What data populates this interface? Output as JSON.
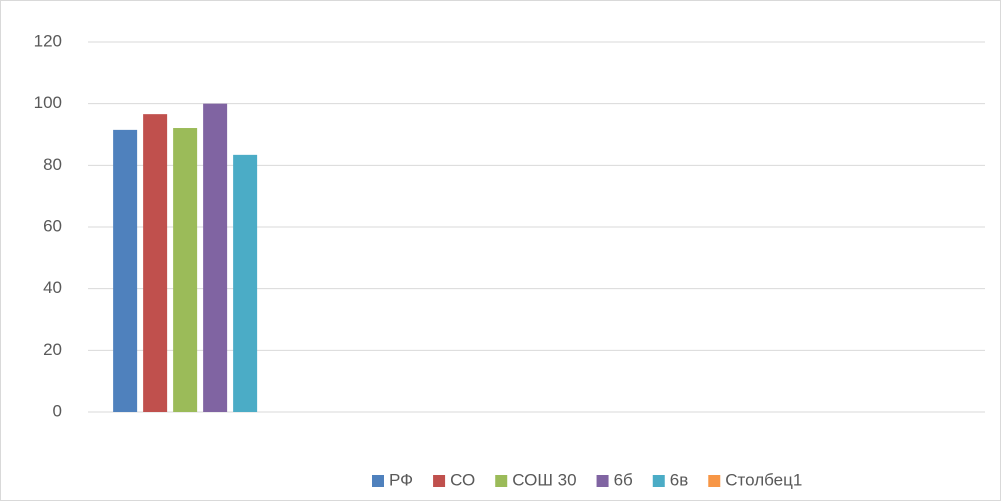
{
  "chart_data": {
    "type": "bar",
    "categories": [
      null,
      null,
      null,
      null
    ],
    "series": [
      {
        "name": "РФ",
        "color": "#4f81bd",
        "values": [
          91.5,
          null,
          null,
          null
        ]
      },
      {
        "name": "СО",
        "color": "#c0504d",
        "values": [
          96.6,
          null,
          null,
          null
        ]
      },
      {
        "name": "СОШ 30",
        "color": "#9bbb59",
        "values": [
          92.1,
          null,
          null,
          null
        ]
      },
      {
        "name": "6б",
        "color": "#8064a2",
        "values": [
          100,
          null,
          null,
          null
        ]
      },
      {
        "name": "6в",
        "color": "#4bacc6",
        "values": [
          83.4,
          null,
          null,
          null
        ]
      },
      {
        "name": "Столбец1",
        "color": "#f79646",
        "values": [
          null,
          null,
          null,
          null
        ]
      }
    ],
    "ylim": [
      0,
      120
    ],
    "yticks": [
      0,
      20,
      40,
      60,
      80,
      100,
      120
    ],
    "grid": true,
    "legend": "bottom"
  }
}
